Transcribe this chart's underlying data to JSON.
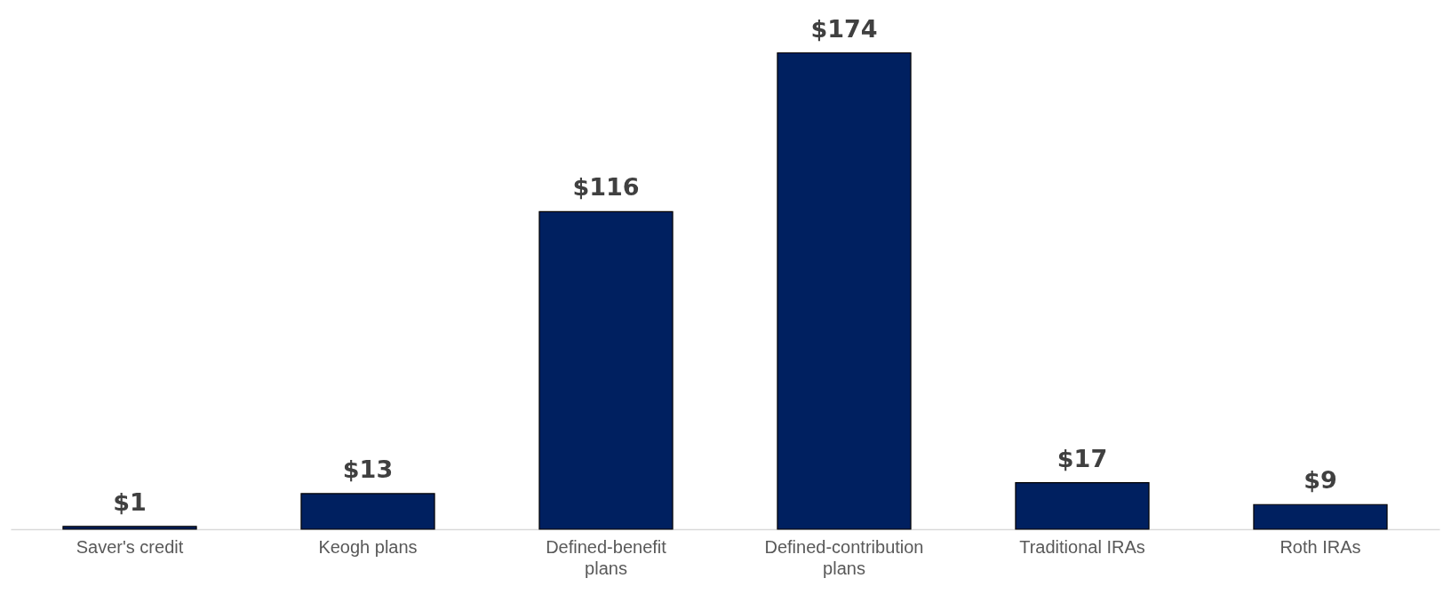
{
  "chart_data": {
    "type": "bar",
    "categories": [
      "Saver's credit",
      "Keogh plans",
      "Defined-benefit plans",
      "Defined-contribution plans",
      "Traditional IRAs",
      "Roth IRAs"
    ],
    "values": [
      1,
      13,
      116,
      174,
      17,
      9
    ],
    "value_labels": [
      "$1",
      "$13",
      "$116",
      "$174",
      "$17",
      "$9"
    ],
    "color": "#002060",
    "grid": false
  }
}
